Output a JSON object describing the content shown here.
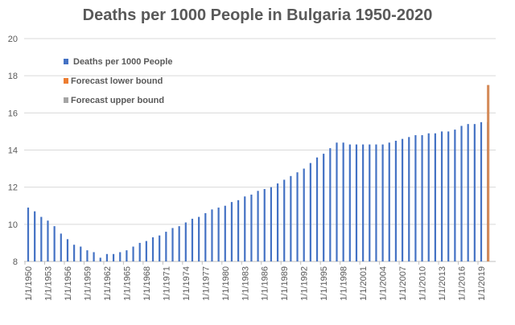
{
  "chart_data": {
    "type": "bar",
    "title": "Deaths per 1000 People in Bulgaria 1950-2020",
    "xlabel": "",
    "ylabel": "",
    "ylim": [
      8,
      20
    ],
    "yticks": [
      8,
      10,
      12,
      14,
      16,
      18,
      20
    ],
    "grid": true,
    "legend_position": "top-left",
    "x": [
      "1/1/1950",
      "1/1/1951",
      "1/1/1952",
      "1/1/1953",
      "1/1/1954",
      "1/1/1955",
      "1/1/1956",
      "1/1/1957",
      "1/1/1958",
      "1/1/1959",
      "1/1/1960",
      "1/1/1961",
      "1/1/1962",
      "1/1/1963",
      "1/1/1964",
      "1/1/1965",
      "1/1/1966",
      "1/1/1967",
      "1/1/1968",
      "1/1/1969",
      "1/1/1970",
      "1/1/1971",
      "1/1/1972",
      "1/1/1973",
      "1/1/1974",
      "1/1/1975",
      "1/1/1976",
      "1/1/1977",
      "1/1/1978",
      "1/1/1979",
      "1/1/1980",
      "1/1/1981",
      "1/1/1982",
      "1/1/1983",
      "1/1/1984",
      "1/1/1985",
      "1/1/1986",
      "1/1/1987",
      "1/1/1988",
      "1/1/1989",
      "1/1/1990",
      "1/1/1991",
      "1/1/1992",
      "1/1/1993",
      "1/1/1994",
      "1/1/1995",
      "1/1/1996",
      "1/1/1997",
      "1/1/1998",
      "1/1/1999",
      "1/1/2000",
      "1/1/2001",
      "1/1/2002",
      "1/1/2003",
      "1/1/2004",
      "1/1/2005",
      "1/1/2006",
      "1/1/2007",
      "1/1/2008",
      "1/1/2009",
      "1/1/2010",
      "1/1/2011",
      "1/1/2012",
      "1/1/2013",
      "1/1/2014",
      "1/1/2015",
      "1/1/2016",
      "1/1/2017",
      "1/1/2018",
      "1/1/2019",
      "1/1/2020"
    ],
    "xtick_labels": [
      "1/1/1950",
      "1/1/1953",
      "1/1/1956",
      "1/1/1959",
      "1/1/1962",
      "1/1/1965",
      "1/1/1968",
      "1/1/1971",
      "1/1/1974",
      "1/1/1977",
      "1/1/1980",
      "1/1/1983",
      "1/1/1986",
      "1/1/1989",
      "1/1/1992",
      "1/1/1995",
      "1/1/1998",
      "1/1/2001",
      "1/1/2004",
      "1/1/2007",
      "1/1/2010",
      "1/1/2013",
      "1/1/2016",
      "1/1/2019"
    ],
    "series": [
      {
        "name": "Deaths per 1000 People",
        "color": "#4472c4",
        "values": [
          10.9,
          10.7,
          10.4,
          10.2,
          9.9,
          9.5,
          9.2,
          8.9,
          8.8,
          8.6,
          8.5,
          8.2,
          8.4,
          8.4,
          8.5,
          8.6,
          8.8,
          9.0,
          9.1,
          9.3,
          9.4,
          9.6,
          9.8,
          9.9,
          10.1,
          10.3,
          10.4,
          10.6,
          10.8,
          10.9,
          11.0,
          11.2,
          11.3,
          11.5,
          11.6,
          11.8,
          11.9,
          12.0,
          12.2,
          12.4,
          12.6,
          12.8,
          13.0,
          13.3,
          13.6,
          13.8,
          14.1,
          14.4,
          14.4,
          14.3,
          14.3,
          14.3,
          14.3,
          14.3,
          14.3,
          14.4,
          14.5,
          14.6,
          14.7,
          14.8,
          14.8,
          14.9,
          14.9,
          15.0,
          15.0,
          15.1,
          15.3,
          15.4,
          15.4,
          15.5,
          15.5
        ]
      },
      {
        "name": "Forecast lower bound",
        "color": "#ed7d31",
        "values": [
          null,
          null,
          null,
          null,
          null,
          null,
          null,
          null,
          null,
          null,
          null,
          null,
          null,
          null,
          null,
          null,
          null,
          null,
          null,
          null,
          null,
          null,
          null,
          null,
          null,
          null,
          null,
          null,
          null,
          null,
          null,
          null,
          null,
          null,
          null,
          null,
          null,
          null,
          null,
          null,
          null,
          null,
          null,
          null,
          null,
          null,
          null,
          null,
          null,
          null,
          null,
          null,
          null,
          null,
          null,
          null,
          null,
          null,
          null,
          null,
          null,
          null,
          null,
          null,
          null,
          null,
          null,
          null,
          null,
          null,
          17.5
        ]
      },
      {
        "name": "Forecast upper bound",
        "color": "#a5a5a5",
        "values": [
          null,
          null,
          null,
          null,
          null,
          null,
          null,
          null,
          null,
          null,
          null,
          null,
          null,
          null,
          null,
          null,
          null,
          null,
          null,
          null,
          null,
          null,
          null,
          null,
          null,
          null,
          null,
          null,
          null,
          null,
          null,
          null,
          null,
          null,
          null,
          null,
          null,
          null,
          null,
          null,
          null,
          null,
          null,
          null,
          null,
          null,
          null,
          null,
          null,
          null,
          null,
          null,
          null,
          null,
          null,
          null,
          null,
          null,
          null,
          null,
          null,
          null,
          null,
          null,
          null,
          null,
          null,
          null,
          null,
          null,
          17.5
        ]
      }
    ]
  }
}
